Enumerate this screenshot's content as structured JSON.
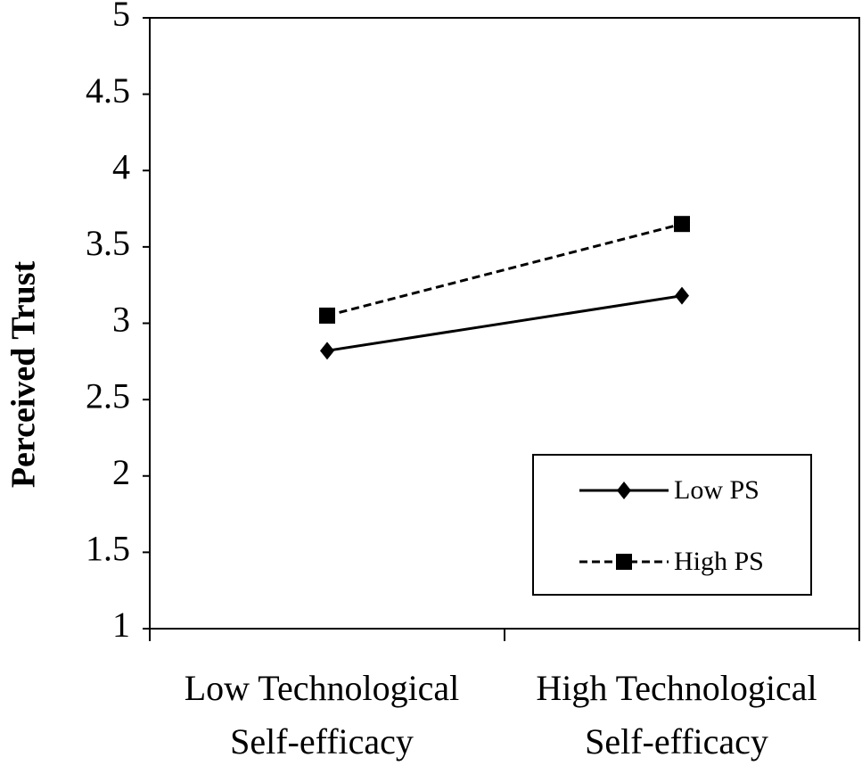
{
  "chart_data": {
    "type": "line",
    "ylabel": "Perceived Trust",
    "categories": [
      "Low Technological Self-efficacy",
      "High Technological Self-efficacy"
    ],
    "series": [
      {
        "name": "Low PS",
        "color": "#000000",
        "line_style": "solid",
        "marker": "diamond",
        "values": [
          2.82,
          3.18
        ]
      },
      {
        "name": "High PS",
        "color": "#000000",
        "line_style": "dashed",
        "marker": "square",
        "values": [
          3.05,
          3.65
        ]
      }
    ],
    "ylim": [
      1,
      5
    ],
    "yticks": [
      1,
      1.5,
      2,
      2.5,
      3,
      3.5,
      4,
      4.5,
      5
    ],
    "grid": false,
    "legend": "lower right"
  }
}
